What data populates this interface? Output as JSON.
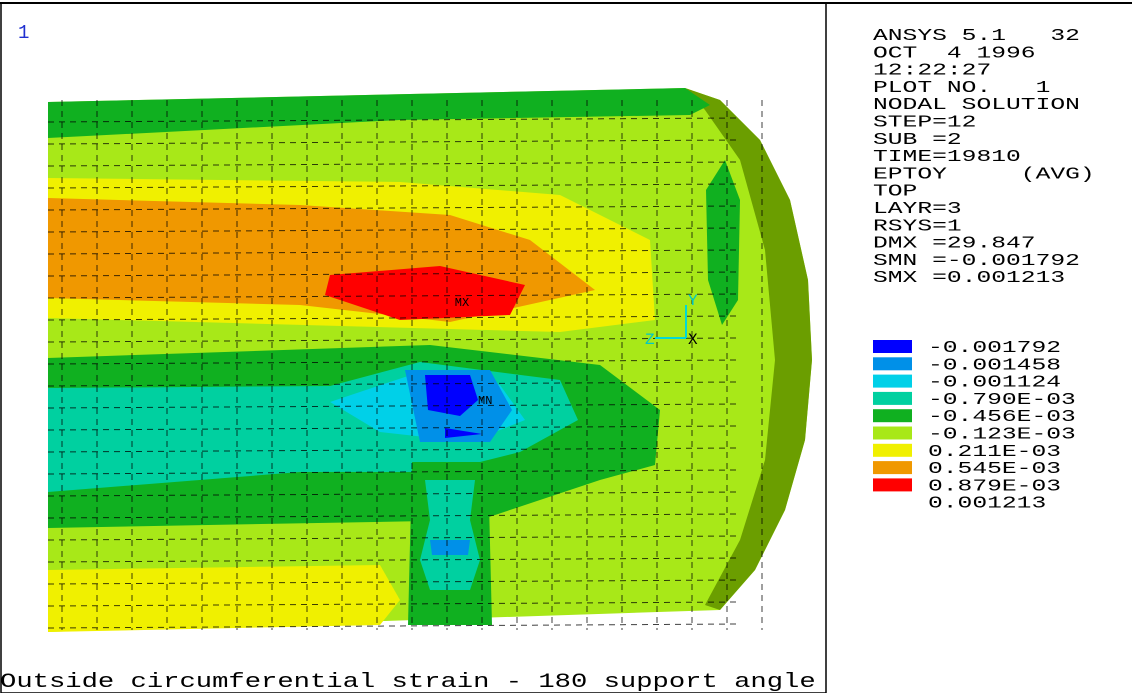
{
  "window_number": "1",
  "info": [
    "ANSYS 5.1   32",
    "OCT  4 1996",
    "12:22:27",
    "PLOT NO.   1",
    "NODAL SOLUTION",
    "STEP=12",
    "SUB =2",
    "TIME=19810",
    "EPTOY     (AVG)",
    "TOP",
    "LAYR=3",
    "RSYS=1",
    "DMX =29.847",
    "SMN =-0.001792",
    "SMX =0.001213"
  ],
  "legend": {
    "colors": [
      "#0000ff",
      "#0090e8",
      "#00d0e8",
      "#00d0a0",
      "#10b020",
      "#a8e818",
      "#f0f000",
      "#f09800",
      "#ff0000"
    ],
    "labels": [
      "-0.001792",
      "-0.001458",
      "-0.001124",
      "-0.790E-03",
      "-0.456E-03",
      "-0.123E-03",
      "0.211E-03",
      "0.545E-03",
      "0.879E-03",
      "0.001213"
    ]
  },
  "markers": {
    "max": "MX",
    "min": "MN"
  },
  "axes": {
    "y": "Y",
    "z": "Z",
    "x": "X"
  },
  "caption": "Outside circumferential strain - 180 support angle"
}
